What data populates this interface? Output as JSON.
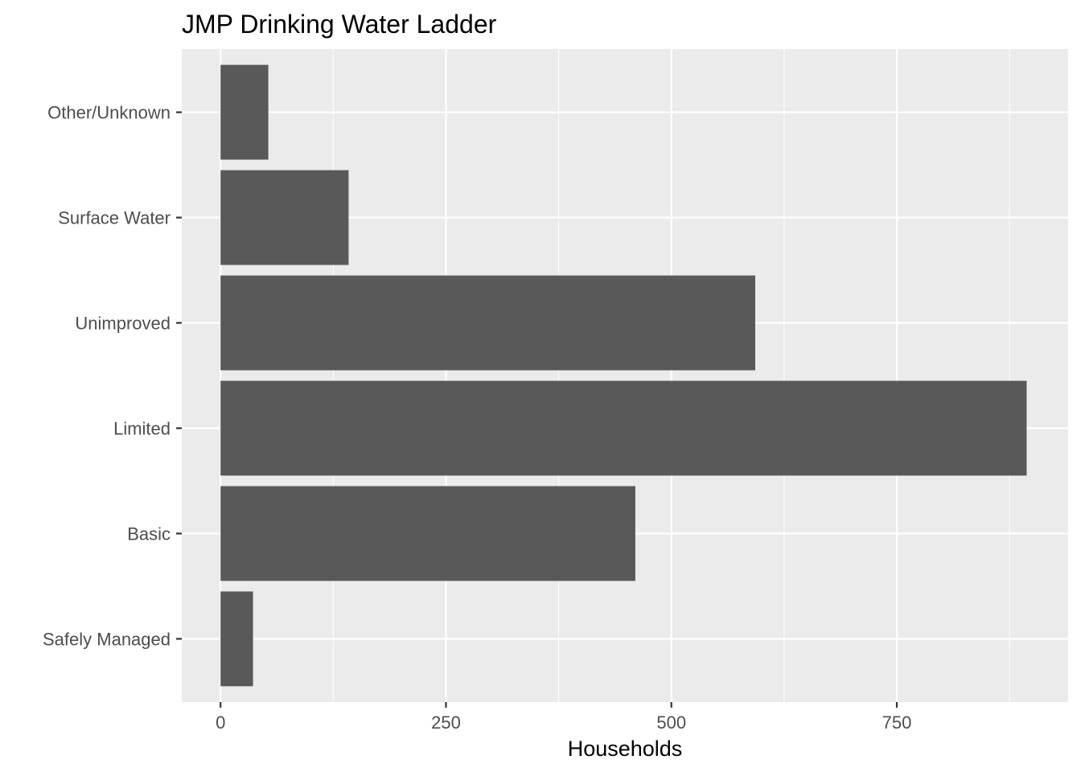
{
  "chart_data": {
    "type": "bar",
    "orientation": "horizontal",
    "title": "JMP Drinking Water Ladder",
    "xlabel": "Households",
    "ylabel": "",
    "categories": [
      "Safely Managed",
      "Basic",
      "Limited",
      "Unimproved",
      "Surface Water",
      "Other/Unknown"
    ],
    "values": [
      36,
      460,
      894,
      593,
      142,
      53
    ],
    "xlim": [
      -43,
      940
    ],
    "x_ticks": [
      0,
      250,
      500,
      750
    ],
    "x_tick_labels": [
      "0",
      "250",
      "500",
      "750"
    ],
    "grid": true,
    "legend": "none",
    "colors": {
      "bar": "#595959",
      "panel_background": "#ebebeb",
      "grid_major": "#ffffff",
      "tick_text": "#4d4d4d"
    }
  }
}
